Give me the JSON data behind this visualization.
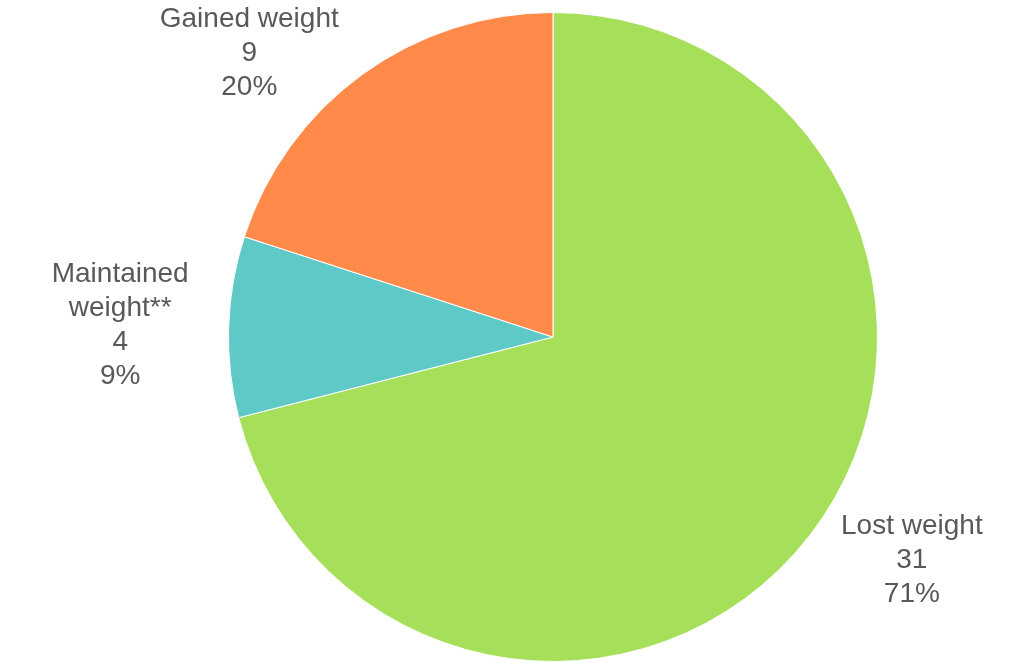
{
  "chart_data": {
    "type": "pie",
    "categories": [
      "Lost weight",
      "Maintained weight**",
      "Gained weight"
    ],
    "values": [
      71,
      9,
      20
    ],
    "colors": [
      "#a6e05a",
      "#5ec9c6",
      "#ff8a4a"
    ],
    "value_labels": [
      "31\n71%",
      "4\n9%",
      "9\n20%"
    ],
    "legend": false
  }
}
